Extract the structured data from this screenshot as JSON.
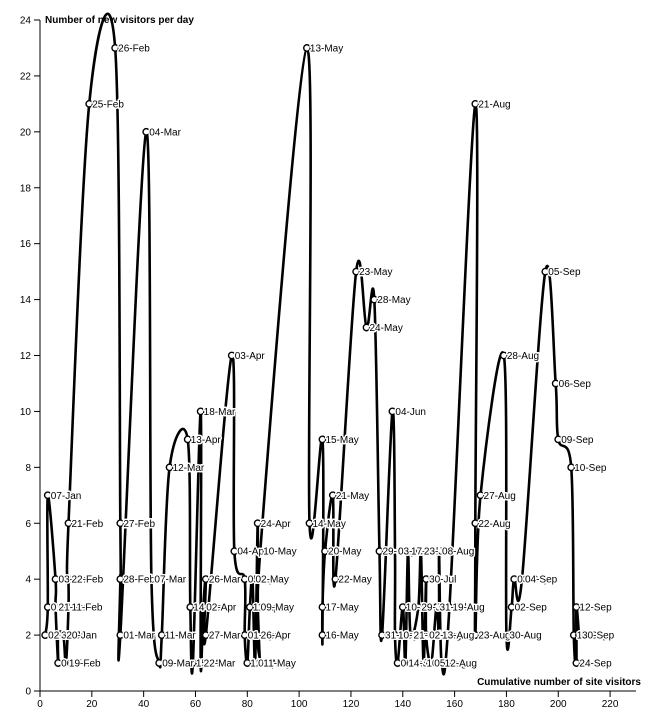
{
  "chart_data": {
    "type": "line",
    "title": "",
    "xlabel": "Cumulative number of site visitors",
    "ylabel": "Number of new visitors per day",
    "xlim": [
      0,
      230
    ],
    "ylim": [
      0,
      24
    ],
    "xticks": [
      0,
      20,
      40,
      60,
      80,
      100,
      120,
      140,
      160,
      180,
      200,
      220
    ],
    "yticks": [
      0,
      2,
      4,
      6,
      8,
      10,
      12,
      14,
      16,
      18,
      20,
      22,
      24
    ],
    "grid": false,
    "legend": "none",
    "points": [
      {
        "x": 2,
        "y": 2,
        "label": "02-Jan"
      },
      {
        "x": 3,
        "y": 3,
        "label": "01-Jan"
      },
      {
        "x": 3,
        "y": 7,
        "label": "07-Jan"
      },
      {
        "x": 6,
        "y": 4,
        "label": "03-Jan"
      },
      {
        "x": 6,
        "y": 3,
        "label": "21-Jan"
      },
      {
        "x": 7,
        "y": 1,
        "label": "06-Feb"
      },
      {
        "x": 7,
        "y": 2,
        "label": "30-Jan"
      },
      {
        "x": 9,
        "y": 2,
        "label": "20-Jan"
      },
      {
        "x": 10,
        "y": 1,
        "label": "19-Feb"
      },
      {
        "x": 11,
        "y": 3,
        "label": "11-Feb"
      },
      {
        "x": 11,
        "y": 4,
        "label": "22-Feb"
      },
      {
        "x": 11,
        "y": 6,
        "label": "21-Feb"
      },
      {
        "x": 19,
        "y": 21,
        "label": "25-Feb"
      },
      {
        "x": 29,
        "y": 23,
        "label": "26-Feb"
      },
      {
        "x": 31,
        "y": 6,
        "label": "27-Feb"
      },
      {
        "x": 31,
        "y": 4,
        "label": "28-Feb"
      },
      {
        "x": 31,
        "y": 2,
        "label": "01-Mar"
      },
      {
        "x": 41,
        "y": 20,
        "label": "04-Mar"
      },
      {
        "x": 43,
        "y": 4,
        "label": "07-Mar"
      },
      {
        "x": 46,
        "y": 1,
        "label": "09-Mar"
      },
      {
        "x": 47,
        "y": 2,
        "label": "11-Mar"
      },
      {
        "x": 50,
        "y": 8,
        "label": "12-Mar"
      },
      {
        "x": 57,
        "y": 9,
        "label": "13-Apr"
      },
      {
        "x": 58,
        "y": 3,
        "label": "14-Mar"
      },
      {
        "x": 59,
        "y": 1,
        "label": "15-Mar"
      },
      {
        "x": 62,
        "y": 10,
        "label": "18-Mar"
      },
      {
        "x": 62,
        "y": 1,
        "label": "22-Mar"
      },
      {
        "x": 63,
        "y": 3,
        "label": "02-Apr"
      },
      {
        "x": 64,
        "y": 4,
        "label": "26-Mar"
      },
      {
        "x": 64,
        "y": 2,
        "label": "27-Mar"
      },
      {
        "x": 74,
        "y": 12,
        "label": "03-Apr"
      },
      {
        "x": 75,
        "y": 5,
        "label": "04-Apr"
      },
      {
        "x": 79,
        "y": 4,
        "label": "05-Apr"
      },
      {
        "x": 79,
        "y": 2,
        "label": "01-Apr"
      },
      {
        "x": 80,
        "y": 1,
        "label": "12-Apr"
      },
      {
        "x": 81,
        "y": 3,
        "label": "11-Apr"
      },
      {
        "x": 82,
        "y": 4,
        "label": "02-May"
      },
      {
        "x": 83,
        "y": 1,
        "label": "01-May"
      },
      {
        "x": 84,
        "y": 6,
        "label": "24-Apr"
      },
      {
        "x": 84,
        "y": 2,
        "label": "26-Apr"
      },
      {
        "x": 84,
        "y": 3,
        "label": "09-May"
      },
      {
        "x": 85,
        "y": 1,
        "label": "11-May"
      },
      {
        "x": 85,
        "y": 5,
        "label": "10-May"
      },
      {
        "x": 103,
        "y": 23,
        "label": "13-May"
      },
      {
        "x": 104,
        "y": 6,
        "label": "14-May"
      },
      {
        "x": 109,
        "y": 9,
        "label": "15-May"
      },
      {
        "x": 109,
        "y": 2,
        "label": "16-May"
      },
      {
        "x": 109,
        "y": 3,
        "label": "17-May"
      },
      {
        "x": 110,
        "y": 5,
        "label": "20-May"
      },
      {
        "x": 113,
        "y": 7,
        "label": "21-May"
      },
      {
        "x": 114,
        "y": 4,
        "label": "22-May"
      },
      {
        "x": 122,
        "y": 15,
        "label": "23-May"
      },
      {
        "x": 126,
        "y": 13,
        "label": "24-May"
      },
      {
        "x": 129,
        "y": 14,
        "label": "28-May"
      },
      {
        "x": 131,
        "y": 5,
        "label": "29-May"
      },
      {
        "x": 132,
        "y": 2,
        "label": "31-May"
      },
      {
        "x": 136,
        "y": 10,
        "label": "04-Jun"
      },
      {
        "x": 137,
        "y": 5,
        "label": "03-Jun"
      },
      {
        "x": 137,
        "y": 2,
        "label": "10-Jun"
      },
      {
        "x": 138,
        "y": 1,
        "label": "06-Jun"
      },
      {
        "x": 140,
        "y": 3,
        "label": "10-Jul"
      },
      {
        "x": 141,
        "y": 1,
        "label": "14-Jul"
      },
      {
        "x": 142,
        "y": 5,
        "label": "17-Jul"
      },
      {
        "x": 143,
        "y": 2,
        "label": "21-Jul"
      },
      {
        "x": 146,
        "y": 3,
        "label": "29-Jul"
      },
      {
        "x": 147,
        "y": 5,
        "label": "23-Jul"
      },
      {
        "x": 148,
        "y": 1,
        "label": "10-Jul"
      },
      {
        "x": 149,
        "y": 4,
        "label": "30-Jul"
      },
      {
        "x": 149,
        "y": 2,
        "label": "02-Aug"
      },
      {
        "x": 151,
        "y": 1,
        "label": "05-Aug"
      },
      {
        "x": 153,
        "y": 3,
        "label": "31-Jul"
      },
      {
        "x": 154,
        "y": 2,
        "label": "13-Aug"
      },
      {
        "x": 154,
        "y": 5,
        "label": "08-Aug"
      },
      {
        "x": 155,
        "y": 1,
        "label": "12-Aug"
      },
      {
        "x": 158,
        "y": 3,
        "label": "19-Aug"
      },
      {
        "x": 168,
        "y": 21,
        "label": "21-Aug"
      },
      {
        "x": 168,
        "y": 6,
        "label": "22-Aug"
      },
      {
        "x": 168,
        "y": 2,
        "label": "23-Aug"
      },
      {
        "x": 170,
        "y": 7,
        "label": "27-Aug"
      },
      {
        "x": 179,
        "y": 12,
        "label": "28-Aug"
      },
      {
        "x": 180,
        "y": 2,
        "label": "30-Aug"
      },
      {
        "x": 182,
        "y": 3,
        "label": "02-Sep"
      },
      {
        "x": 183,
        "y": 4,
        "label": "03-Sep"
      },
      {
        "x": 186,
        "y": 4,
        "label": "04-Sep"
      },
      {
        "x": 195,
        "y": 15,
        "label": "05-Sep"
      },
      {
        "x": 199,
        "y": 11,
        "label": "06-Sep"
      },
      {
        "x": 200,
        "y": 9,
        "label": "09-Sep"
      },
      {
        "x": 205,
        "y": 8,
        "label": "10-Sep"
      },
      {
        "x": 206,
        "y": 2,
        "label": "11-Sep"
      },
      {
        "x": 207,
        "y": 1,
        "label": "24-Sep"
      },
      {
        "x": 207,
        "y": 3,
        "label": "12-Sep"
      },
      {
        "x": 208,
        "y": 2,
        "label": "30-Sep"
      }
    ]
  }
}
